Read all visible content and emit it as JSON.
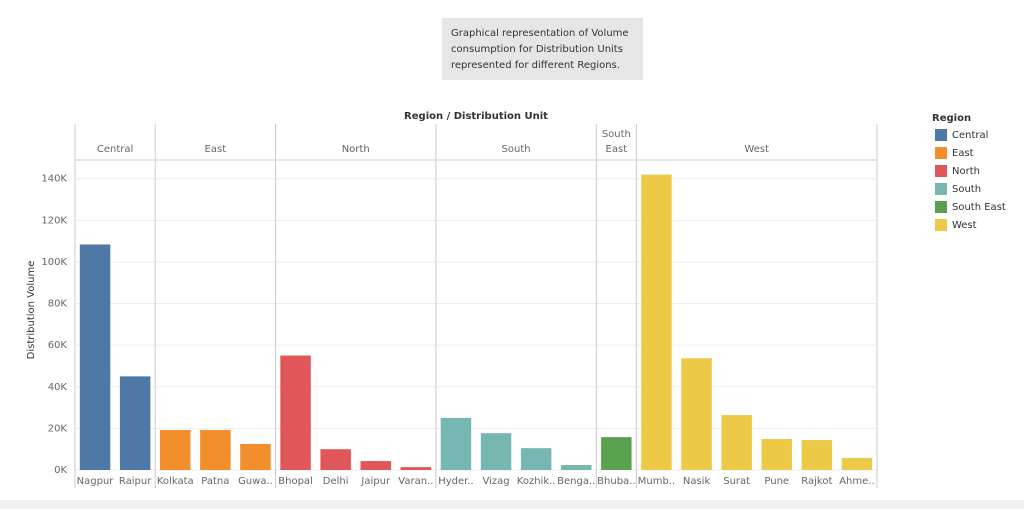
{
  "chart_data": {
    "type": "bar",
    "annotation": "Graphical representation of Volume consumption for Distribution Units represented for different Regions.",
    "header": "Region / Distribution Unit",
    "y_label": "Distribution Volume",
    "legend_title": "Region",
    "ylim": [
      0,
      149000
    ],
    "yticks": [
      {
        "value": 0,
        "label": "0K"
      },
      {
        "value": 20000,
        "label": "20K"
      },
      {
        "value": 40000,
        "label": "40K"
      },
      {
        "value": 60000,
        "label": "60K"
      },
      {
        "value": 80000,
        "label": "80K"
      },
      {
        "value": 100000,
        "label": "100K"
      },
      {
        "value": 120000,
        "label": "120K"
      },
      {
        "value": 140000,
        "label": "140K"
      }
    ],
    "grid": true,
    "series": [
      {
        "name": "Central",
        "color": "#4e79a7",
        "categories": [
          "Nagpur",
          "Raipur"
        ],
        "values": [
          108400,
          45000
        ]
      },
      {
        "name": "East",
        "color": "#f28e2b",
        "categories": [
          "Kolkata",
          "Patna",
          "Guwa.."
        ],
        "values": [
          19200,
          19200,
          12500
        ]
      },
      {
        "name": "North",
        "color": "#e15759",
        "categories": [
          "Bhopal",
          "Delhi",
          "Jaipur",
          "Varan.."
        ],
        "values": [
          55000,
          10000,
          4300,
          1400
        ]
      },
      {
        "name": "South",
        "color": "#76b7b2",
        "categories": [
          "Hyder..",
          "Vizag",
          "Kozhik..",
          "Benga.."
        ],
        "values": [
          25000,
          17700,
          10500,
          2400
        ]
      },
      {
        "name": "South East",
        "color": "#59a14f",
        "categories": [
          "Bhuba.."
        ],
        "values": [
          15800
        ]
      },
      {
        "name": "West",
        "color": "#edc948",
        "categories": [
          "Mumb..",
          "Nasik",
          "Surat",
          "Pune",
          "Rajkot",
          "Ahme.."
        ],
        "values": [
          142000,
          53700,
          26400,
          14900,
          14400,
          5800
        ]
      }
    ]
  }
}
